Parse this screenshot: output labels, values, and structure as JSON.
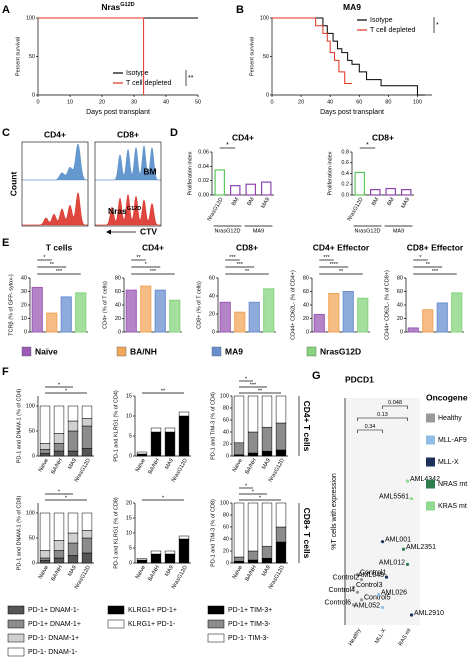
{
  "panels": [
    {
      "letter": "A",
      "type": "survival",
      "title": "Nras",
      "title_sup": "G12D",
      "y_label": "Percent survival",
      "x_label": "Days post transplant",
      "xlim": [
        0,
        50
      ],
      "xticks": [
        0,
        10,
        20,
        30,
        40,
        50
      ],
      "ylim": [
        0,
        100
      ],
      "yticks": [
        0,
        50,
        100
      ],
      "series": [
        {
          "name": "Isotype",
          "color": "#000000",
          "x": [
            0,
            50
          ],
          "y": [
            100,
            100
          ]
        },
        {
          "name": "T cell depleted",
          "color": "#e0301e",
          "x": [
            0,
            33,
            33
          ],
          "y": [
            100,
            100,
            0
          ]
        }
      ],
      "significance": "**"
    },
    {
      "letter": "B",
      "type": "survival",
      "title": "MA9",
      "y_label": "Percent survival",
      "x_label": "Days post transplant",
      "xlim": [
        0,
        110
      ],
      "xticks": [
        0,
        20,
        40,
        60,
        80,
        100
      ],
      "ylim": [
        0,
        100
      ],
      "yticks": [
        0,
        50,
        100
      ],
      "series": [
        {
          "name": "Isotype",
          "color": "#000000",
          "x": [
            0,
            35,
            35,
            38,
            38,
            42,
            42,
            45,
            45,
            48,
            48,
            52,
            52,
            55,
            55,
            60,
            60,
            65,
            65,
            75,
            75,
            100,
            100,
            105
          ],
          "y": [
            100,
            100,
            90,
            90,
            80,
            80,
            70,
            70,
            60,
            60,
            55,
            55,
            45,
            45,
            40,
            40,
            30,
            30,
            20,
            20,
            12,
            12,
            0,
            0
          ]
        },
        {
          "name": "T cell depleted",
          "color": "#e0301e",
          "x": [
            0,
            30,
            30,
            35,
            35,
            38,
            38,
            40,
            40,
            43,
            43,
            46,
            46,
            50,
            50,
            55
          ],
          "y": [
            100,
            100,
            90,
            90,
            80,
            80,
            70,
            70,
            55,
            55,
            45,
            45,
            30,
            30,
            15,
            15
          ]
        }
      ],
      "significance": "*"
    },
    {
      "letter": "C",
      "type": "histograms",
      "col_titles": [
        "CD4+",
        "CD8+"
      ],
      "top_label": "BM",
      "bottom_label": "Nras",
      "bottom_label_sup": "G12D",
      "y_label": "Count",
      "x_label": "CTV"
    },
    {
      "letter": "D",
      "type": "bar_groups",
      "categories": [
        "NrasG12D",
        "BM",
        "BM",
        "MA9"
      ],
      "colors": [
        "#5cc85c",
        "#8e44ad",
        "#8e44ad",
        "#8e44ad"
      ],
      "groups": [
        "NrasG12D",
        "MA9"
      ],
      "charts": [
        {
          "title": "CD4+",
          "y_label": "Proliferation index",
          "ylim": [
            0,
            0.06
          ],
          "yticks": [
            {
              "value": 0,
              "label": "0.00"
            },
            {
              "value": 0.02,
              "label": "0.02"
            },
            {
              "value": 0.04,
              "label": "0.04"
            },
            {
              "value": 0.06,
              "label": "0.06"
            }
          ],
          "values": [
            0.035,
            0.013,
            0.015,
            0.018
          ],
          "sig": "*"
        },
        {
          "title": "CD8+",
          "y_label": "Proliferation index",
          "ylim": [
            0,
            0.8
          ],
          "yticks": [
            {
              "value": 0,
              "label": "0.0"
            },
            {
              "value": 0.2,
              "label": "0.2"
            },
            {
              "value": 0.4,
              "label": "0.4"
            },
            {
              "value": 0.6,
              "label": "0.6"
            },
            {
              "value": 0.8,
              "label": "0.8"
            }
          ],
          "values": [
            0.42,
            0.1,
            0.12,
            0.1
          ],
          "sig": "*"
        }
      ]
    },
    {
      "letter": "E",
      "type": "bar_panels",
      "legend": [
        {
          "name": "Naïve",
          "color": "#9b59b6"
        },
        {
          "name": "BA/NH",
          "color": "#f2a65a"
        },
        {
          "name": "MA9",
          "color": "#6a8fd0"
        },
        {
          "name": "NrasG12D",
          "color": "#86d47e"
        }
      ],
      "charts": [
        {
          "title": "T cells",
          "y_label": "TCRβ (% of GFP- sytox-)",
          "ylim": [
            0,
            40
          ],
          "yticks": [
            0,
            10,
            20,
            30,
            40
          ],
          "values": [
            33,
            14,
            26,
            29
          ],
          "sig": [
            "***",
            "**",
            "*"
          ]
        },
        {
          "title": "CD4+",
          "y_label": "CD4+ (% of T cells)",
          "ylim": [
            0,
            80
          ],
          "yticks": [
            0,
            20,
            40,
            60,
            80
          ],
          "values": [
            62,
            68,
            62,
            47
          ],
          "sig": [
            "***",
            "*",
            "**"
          ]
        },
        {
          "title": "CD8+",
          "y_label": "CD8+ (% of T cells)",
          "ylim": [
            0,
            60
          ],
          "yticks": [
            0,
            20,
            40,
            60
          ],
          "values": [
            33,
            22,
            33,
            48
          ],
          "sig": [
            "**",
            "***",
            "***"
          ]
        },
        {
          "title": "CD4+ Effector",
          "y_label": "CD44+ CD62L- (% of CD4+)",
          "ylim": [
            0,
            80
          ],
          "yticks": [
            0,
            20,
            40,
            60,
            80
          ],
          "values": [
            26,
            57,
            60,
            50
          ],
          "sig": [
            "**",
            "****",
            "***"
          ]
        },
        {
          "title": "CD8+ Effector",
          "y_label": "CD44+ CD62L- (% of CD8+)",
          "ylim": [
            0,
            80
          ],
          "yticks": [
            0,
            20,
            40,
            60,
            80
          ],
          "values": [
            6,
            33,
            43,
            58
          ],
          "sig": [
            "***",
            "**",
            "*"
          ]
        }
      ]
    },
    {
      "letter": "F",
      "type": "stacked_panels",
      "categories": [
        "Naïve",
        "BA/NH",
        "MA9",
        "NrasG12D"
      ],
      "row_labels": [
        "CD4+ T cells",
        "CD8+ T cells"
      ],
      "legends": [
        [
          {
            "name": "PD-1+ DNAM-1-",
            "color": "#555555"
          },
          {
            "name": "PD-1+ DNAM-1+",
            "color": "#8c8c8c"
          },
          {
            "name": "PD-1- DNAM-1+",
            "color": "#cfcfcf"
          },
          {
            "name": "PD-1- DNAM-1-",
            "color": "#ffffff"
          }
        ],
        [
          {
            "name": "KLRG1+ PD-1+",
            "color": "#000000"
          },
          {
            "name": "KLRG1+ PD-1-",
            "color": "#ffffff"
          }
        ],
        [
          {
            "name": "PD-1+ TIM-3+",
            "color": "#000000"
          },
          {
            "name": "PD-1+ TIM-3-",
            "color": "#8c8c8c"
          },
          {
            "name": "PD-1- TIM-3-",
            "color": "#ffffff"
          }
        ]
      ],
      "charts": [
        {
          "y_label": "PD-1 and DNAM-1 (% of CD4)",
          "ylim": [
            0,
            120
          ],
          "yticks": [
            0,
            50,
            100
          ],
          "stacks": [
            [
              5,
              10,
              10,
              15
            ],
            [
              8,
              15,
              40,
              45
            ],
            [
              12,
              20,
              20,
              15
            ],
            [
              75,
              55,
              30,
              25
            ]
          ],
          "sig": [
            "*",
            "*"
          ]
        },
        {
          "y_label": "PD-1 and KLRG1 (% of CD4)",
          "ylim": [
            0,
            15
          ],
          "yticks": [
            0,
            5,
            10,
            15
          ],
          "stacks": [
            [
              0.5,
              6,
              6,
              10
            ],
            [
              0.5,
              1,
              1,
              1
            ]
          ],
          "sig": [
            "**"
          ]
        },
        {
          "y_label": "PD-1 and TIM-3 (% of CD4)",
          "ylim": [
            0,
            100
          ],
          "yticks": [
            0,
            20,
            40,
            60,
            80,
            100
          ],
          "stacks": [
            [
              2,
              5,
              8,
              10
            ],
            [
              20,
              35,
              40,
              45
            ],
            [
              78,
              60,
              52,
              45
            ]
          ],
          "sig": [
            "**",
            "***",
            "*"
          ]
        },
        {
          "y_label": "PD-1 and DNAM-1 (% of CD8)",
          "ylim": [
            0,
            120
          ],
          "yticks": [
            0,
            50,
            100
          ],
          "stacks": [
            [
              5,
              10,
              15,
              20
            ],
            [
              5,
              15,
              25,
              30
            ],
            [
              15,
              20,
              20,
              15
            ],
            [
              75,
              55,
              40,
              35
            ]
          ],
          "sig": [
            "*",
            "*"
          ]
        },
        {
          "y_label": "PD-1 and KLRG1 (% of CD8)",
          "ylim": [
            0,
            20
          ],
          "yticks": [
            0,
            5,
            10,
            15,
            20
          ],
          "stacks": [
            [
              1,
              3,
              3,
              8
            ],
            [
              0.5,
              1,
              1,
              1
            ]
          ],
          "sig": [
            "*"
          ]
        },
        {
          "y_label": "PD-1 and TIM-3 (% of CD8)",
          "ylim": [
            0,
            100
          ],
          "yticks": [
            0,
            20,
            40,
            60,
            80,
            100
          ],
          "stacks": [
            [
              3,
              5,
              8,
              35
            ],
            [
              7,
              15,
              20,
              25
            ],
            [
              90,
              80,
              72,
              40
            ]
          ],
          "sig": [
            "*",
            "*",
            "*"
          ]
        }
      ]
    },
    {
      "letter": "G",
      "type": "labeled_scatter",
      "title": "PDCD1",
      "y_label": "%T cells with expression",
      "categories": [
        "Healthy",
        "MLL-X",
        "RAS mt"
      ],
      "ylim": [
        0,
        7
      ],
      "legend_title": "Oncogene",
      "legend": [
        {
          "name": "Healthy",
          "color": "#9a9a9a"
        },
        {
          "name": "MLL-AF9",
          "color": "#8fbfe6"
        },
        {
          "name": "MLL-X",
          "color": "#1f2f5c"
        },
        {
          "name": "NRAS mt",
          "color": "#2e7d4f"
        },
        {
          "name": "KRAS mt",
          "color": "#8fd98f"
        }
      ],
      "points": [
        {
          "label": "Control1",
          "category": "Healthy",
          "oncogene": "Healthy",
          "value": 1.6
        },
        {
          "label": "Control2",
          "category": "Healthy",
          "oncogene": "Healthy",
          "value": 1.4
        },
        {
          "label": "Control3",
          "category": "Healthy",
          "oncogene": "Healthy",
          "value": 1.1
        },
        {
          "label": "Control4",
          "category": "Healthy",
          "oncogene": "Healthy",
          "value": 0.9
        },
        {
          "label": "Control5",
          "category": "Healthy",
          "oncogene": "Healthy",
          "value": 0.6
        },
        {
          "label": "Control6",
          "category": "Healthy",
          "oncogene": "Healthy",
          "value": 0.4
        },
        {
          "label": "AML001",
          "category": "MLL-X",
          "oncogene": "MLL-X",
          "value": 2.9
        },
        {
          "label": "AML048",
          "category": "MLL-X",
          "oncogene": "MLL-X",
          "value": 1.5
        },
        {
          "label": "AML026",
          "category": "MLL-X",
          "oncogene": "MLL-AF9",
          "value": 0.8
        },
        {
          "label": "AML052",
          "category": "MLL-X",
          "oncogene": "MLL-AF9",
          "value": 0.3
        },
        {
          "label": "AML4342",
          "category": "RAS mt",
          "oncogene": "KRAS mt",
          "value": 5.3
        },
        {
          "label": "AML5561",
          "category": "RAS mt",
          "oncogene": "KRAS mt",
          "value": 4.6
        },
        {
          "label": "AML2351",
          "category": "RAS mt",
          "oncogene": "NRAS mt",
          "value": 2.6
        },
        {
          "label": "AML012",
          "category": "RAS mt",
          "oncogene": "NRAS mt",
          "value": 2.0
        },
        {
          "label": "AML2910",
          "category": "RAS mt",
          "oncogene": "MLL-X",
          "value": 0
        }
      ],
      "brackets": [
        {
          "from": "MLL-X",
          "to": "RAS mt",
          "label": 0.048
        },
        {
          "from": "Healthy",
          "to": "RAS mt",
          "label": 0.13
        },
        {
          "from": "Healthy",
          "to": "MLL-X",
          "label": 0.34
        }
      ]
    }
  ]
}
